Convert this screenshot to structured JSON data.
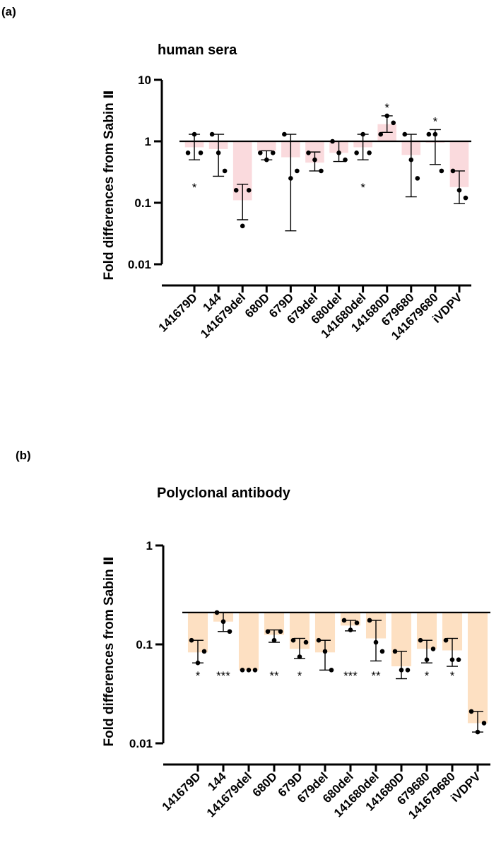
{
  "chart_data": [
    {
      "panel_label": "(a)",
      "type": "bar",
      "title": "human sera",
      "xlabel": "",
      "ylabel": "Fold differences from Sabin Ⅱ",
      "yscale": "log",
      "ylim": [
        0.01,
        10
      ],
      "yticks": [
        0.01,
        0.1,
        1,
        10
      ],
      "ytick_labels": [
        "0.01",
        "0.1",
        "1",
        "10"
      ],
      "reference_line": 1,
      "bar_color": "#fadadd",
      "categories": [
        "141679D",
        "144",
        "141679del",
        "680D",
        "679D",
        "679del",
        "680del",
        "141680del",
        "141680D",
        "679680",
        "141679680",
        "iVDPV"
      ],
      "values": [
        0.8,
        0.75,
        0.11,
        0.7,
        0.55,
        0.45,
        0.65,
        0.8,
        1.9,
        0.6,
        0.95,
        0.18
      ],
      "error_low": [
        0.5,
        0.27,
        0.053,
        0.5,
        0.035,
        0.33,
        0.47,
        0.5,
        1.4,
        0.125,
        0.42,
        0.097
      ],
      "error_high": [
        1.3,
        1.3,
        0.2,
        0.7,
        1.3,
        0.67,
        1.0,
        1.3,
        2.6,
        1.3,
        1.55,
        0.33
      ],
      "points": [
        [
          0.65,
          1.3,
          0.65
        ],
        [
          1.3,
          0.65,
          0.33
        ],
        [
          0.16,
          0.042,
          0.16
        ],
        [
          0.65,
          0.5,
          0.65
        ],
        [
          1.3,
          0.25,
          0.33
        ],
        [
          0.65,
          0.5,
          0.33
        ],
        [
          1.0,
          0.65,
          0.5
        ],
        [
          0.65,
          1.3,
          0.65
        ],
        [
          1.3,
          2.6,
          2.0
        ],
        [
          1.3,
          0.5,
          0.25
        ],
        [
          1.3,
          1.3,
          0.33
        ],
        [
          0.33,
          0.16,
          0.12
        ]
      ],
      "significance": [
        "*",
        "",
        "",
        "",
        "",
        "",
        "",
        "*",
        "*",
        "",
        "*",
        ""
      ],
      "significance_position": [
        "below",
        "",
        "",
        "",
        "",
        "",
        "",
        "below",
        "above",
        "",
        "above",
        ""
      ]
    },
    {
      "panel_label": "(b)",
      "type": "bar",
      "title": "Polyclonal antibody",
      "xlabel": "",
      "ylabel": "Fold differences from Sabin Ⅱ",
      "yscale": "log",
      "ylim": [
        0.0065,
        1
      ],
      "yticks": [
        0.01,
        0.1,
        1
      ],
      "ytick_labels": [
        "0.01",
        "0.1",
        "1"
      ],
      "reference_line": 0.21,
      "bar_color": "#fde0c2",
      "categories": [
        "141679D",
        "144",
        "141679del",
        "680D",
        "679D",
        "679del",
        "680del",
        "141680del",
        "141680D",
        "679680",
        "141679680",
        "iVDPV"
      ],
      "values": [
        0.083,
        0.17,
        0.055,
        0.125,
        0.09,
        0.083,
        0.155,
        0.115,
        0.06,
        0.09,
        0.087,
        0.016
      ],
      "error_low": [
        0.065,
        0.135,
        0.055,
        0.105,
        0.072,
        0.055,
        0.137,
        0.068,
        0.045,
        0.065,
        0.06,
        0.013
      ],
      "error_high": [
        0.11,
        0.21,
        0.055,
        0.14,
        0.115,
        0.11,
        0.175,
        0.175,
        0.085,
        0.11,
        0.115,
        0.021
      ],
      "points": [
        [
          0.11,
          0.065,
          0.085
        ],
        [
          0.21,
          0.17,
          0.135
        ],
        [
          0.055,
          0.055,
          0.055
        ],
        [
          0.135,
          0.11,
          0.135
        ],
        [
          0.11,
          0.075,
          0.105
        ],
        [
          0.11,
          0.085,
          0.055
        ],
        [
          0.175,
          0.14,
          0.165
        ],
        [
          0.175,
          0.105,
          0.085
        ],
        [
          0.085,
          0.055,
          0.055
        ],
        [
          0.11,
          0.07,
          0.09
        ],
        [
          0.11,
          0.07,
          0.07
        ],
        [
          0.021,
          0.013,
          0.016
        ]
      ],
      "significance": [
        "*",
        "***",
        "",
        "**",
        "*",
        "",
        "***",
        "**",
        "",
        "*",
        "*",
        ""
      ],
      "significance_position": [
        "below",
        "below",
        "",
        "below",
        "below",
        "",
        "below",
        "below",
        "",
        "below",
        "below",
        ""
      ]
    }
  ]
}
